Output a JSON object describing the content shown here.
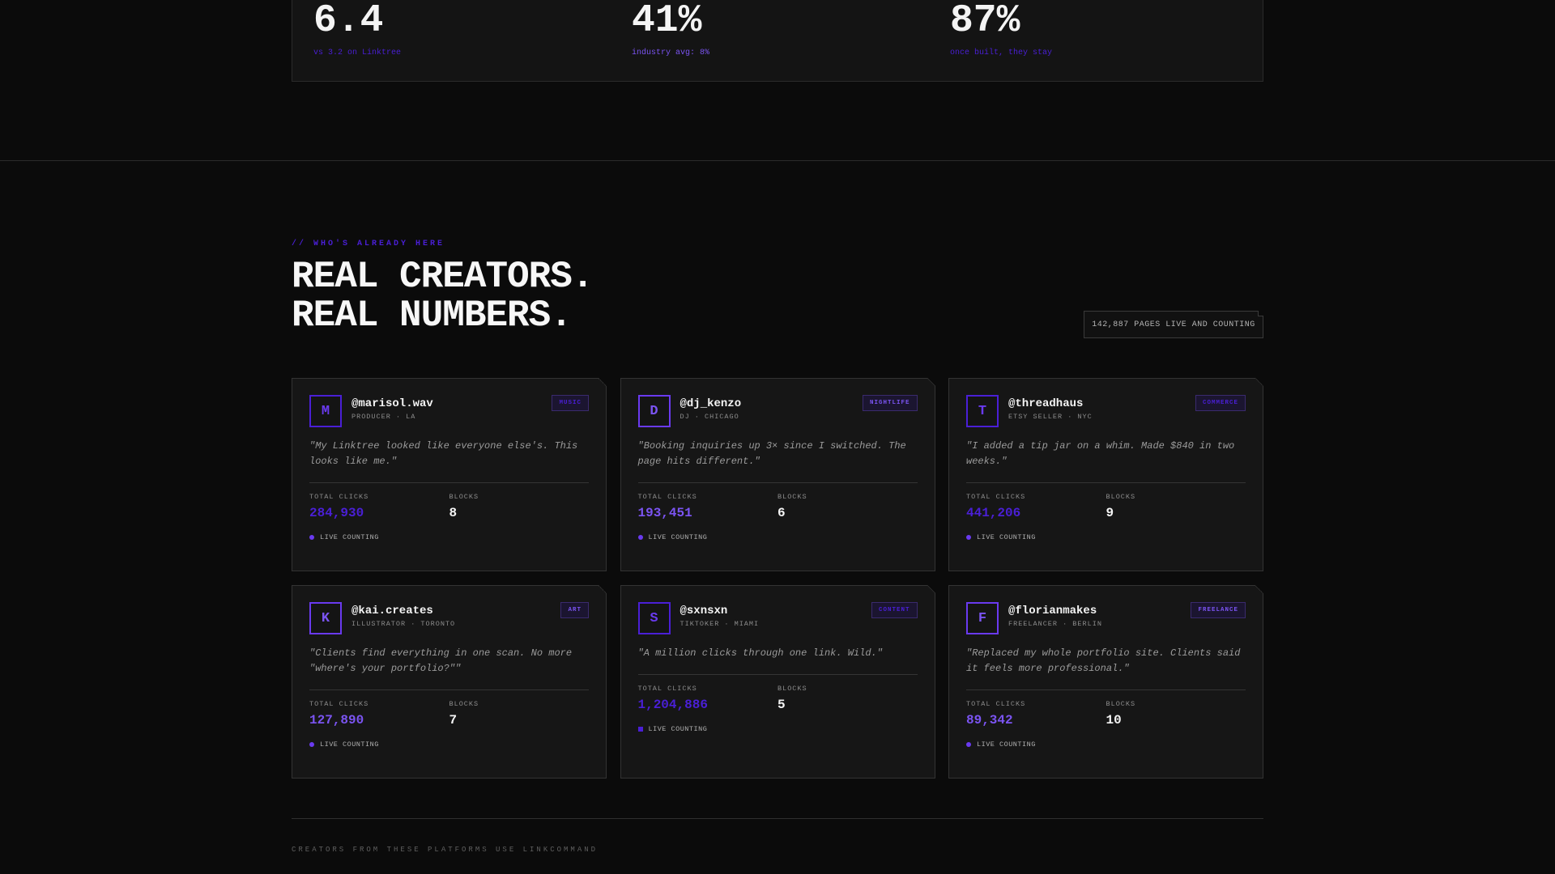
{
  "colors": {
    "accent": "#4a1fd6",
    "accent_bright": "#7b54f2",
    "background": "#0b0b0b",
    "card": "#161616"
  },
  "stats": [
    {
      "value": "6.4",
      "note": "vs 3.2 on Linktree"
    },
    {
      "value": "41%",
      "note": "industry avg: 8%"
    },
    {
      "value": "87%",
      "note": "once built, they stay"
    }
  ],
  "section": {
    "eyebrow": "// WHO'S ALREADY HERE",
    "headline_line1": "REAL CREATORS.",
    "headline_line2": "REAL NUMBERS.",
    "counter": "142,887 PAGES LIVE AND COUNTING"
  },
  "labels": {
    "total_clicks": "TOTAL CLICKS",
    "blocks": "BLOCKS",
    "live": "LIVE COUNTING"
  },
  "creators": [
    {
      "initial": "M",
      "handle": "@marisol.wav",
      "role": "PRODUCER · LA",
      "tag": "MUSIC",
      "quote": "\"My Linktree looked like everyone else's. This looks like me.\"",
      "clicks": "284,930",
      "blocks": "8"
    },
    {
      "initial": "D",
      "handle": "@dj_kenzo",
      "role": "DJ · CHICAGO",
      "tag": "NIGHTLIFE",
      "quote": "\"Booking inquiries up 3× since I switched. The page hits different.\"",
      "clicks": "193,451",
      "blocks": "6"
    },
    {
      "initial": "T",
      "handle": "@threadhaus",
      "role": "ETSY SELLER · NYC",
      "tag": "COMMERCE",
      "quote": "\"I added a tip jar on a whim. Made $840 in two weeks.\"",
      "clicks": "441,206",
      "blocks": "9"
    },
    {
      "initial": "K",
      "handle": "@kai.creates",
      "role": "ILLUSTRATOR · TORONTO",
      "tag": "ART",
      "quote": "\"Clients find everything in one scan. No more \"where's your portfolio?\"\"",
      "clicks": "127,890",
      "blocks": "7"
    },
    {
      "initial": "S",
      "handle": "@sxnsxn",
      "role": "TIKTOKER · MIAMI",
      "tag": "CONTENT",
      "quote": "\"A million clicks through one link. Wild.\"",
      "clicks": "1,204,886",
      "blocks": "5"
    },
    {
      "initial": "F",
      "handle": "@florianmakes",
      "role": "FREELANCER · BERLIN",
      "tag": "FREELANCE",
      "quote": "\"Replaced my whole portfolio site. Clients said it feels more professional.\"",
      "clicks": "89,342",
      "blocks": "10"
    }
  ],
  "footer": {
    "caption": "CREATORS FROM THESE PLATFORMS USE LINKCOMMAND"
  }
}
